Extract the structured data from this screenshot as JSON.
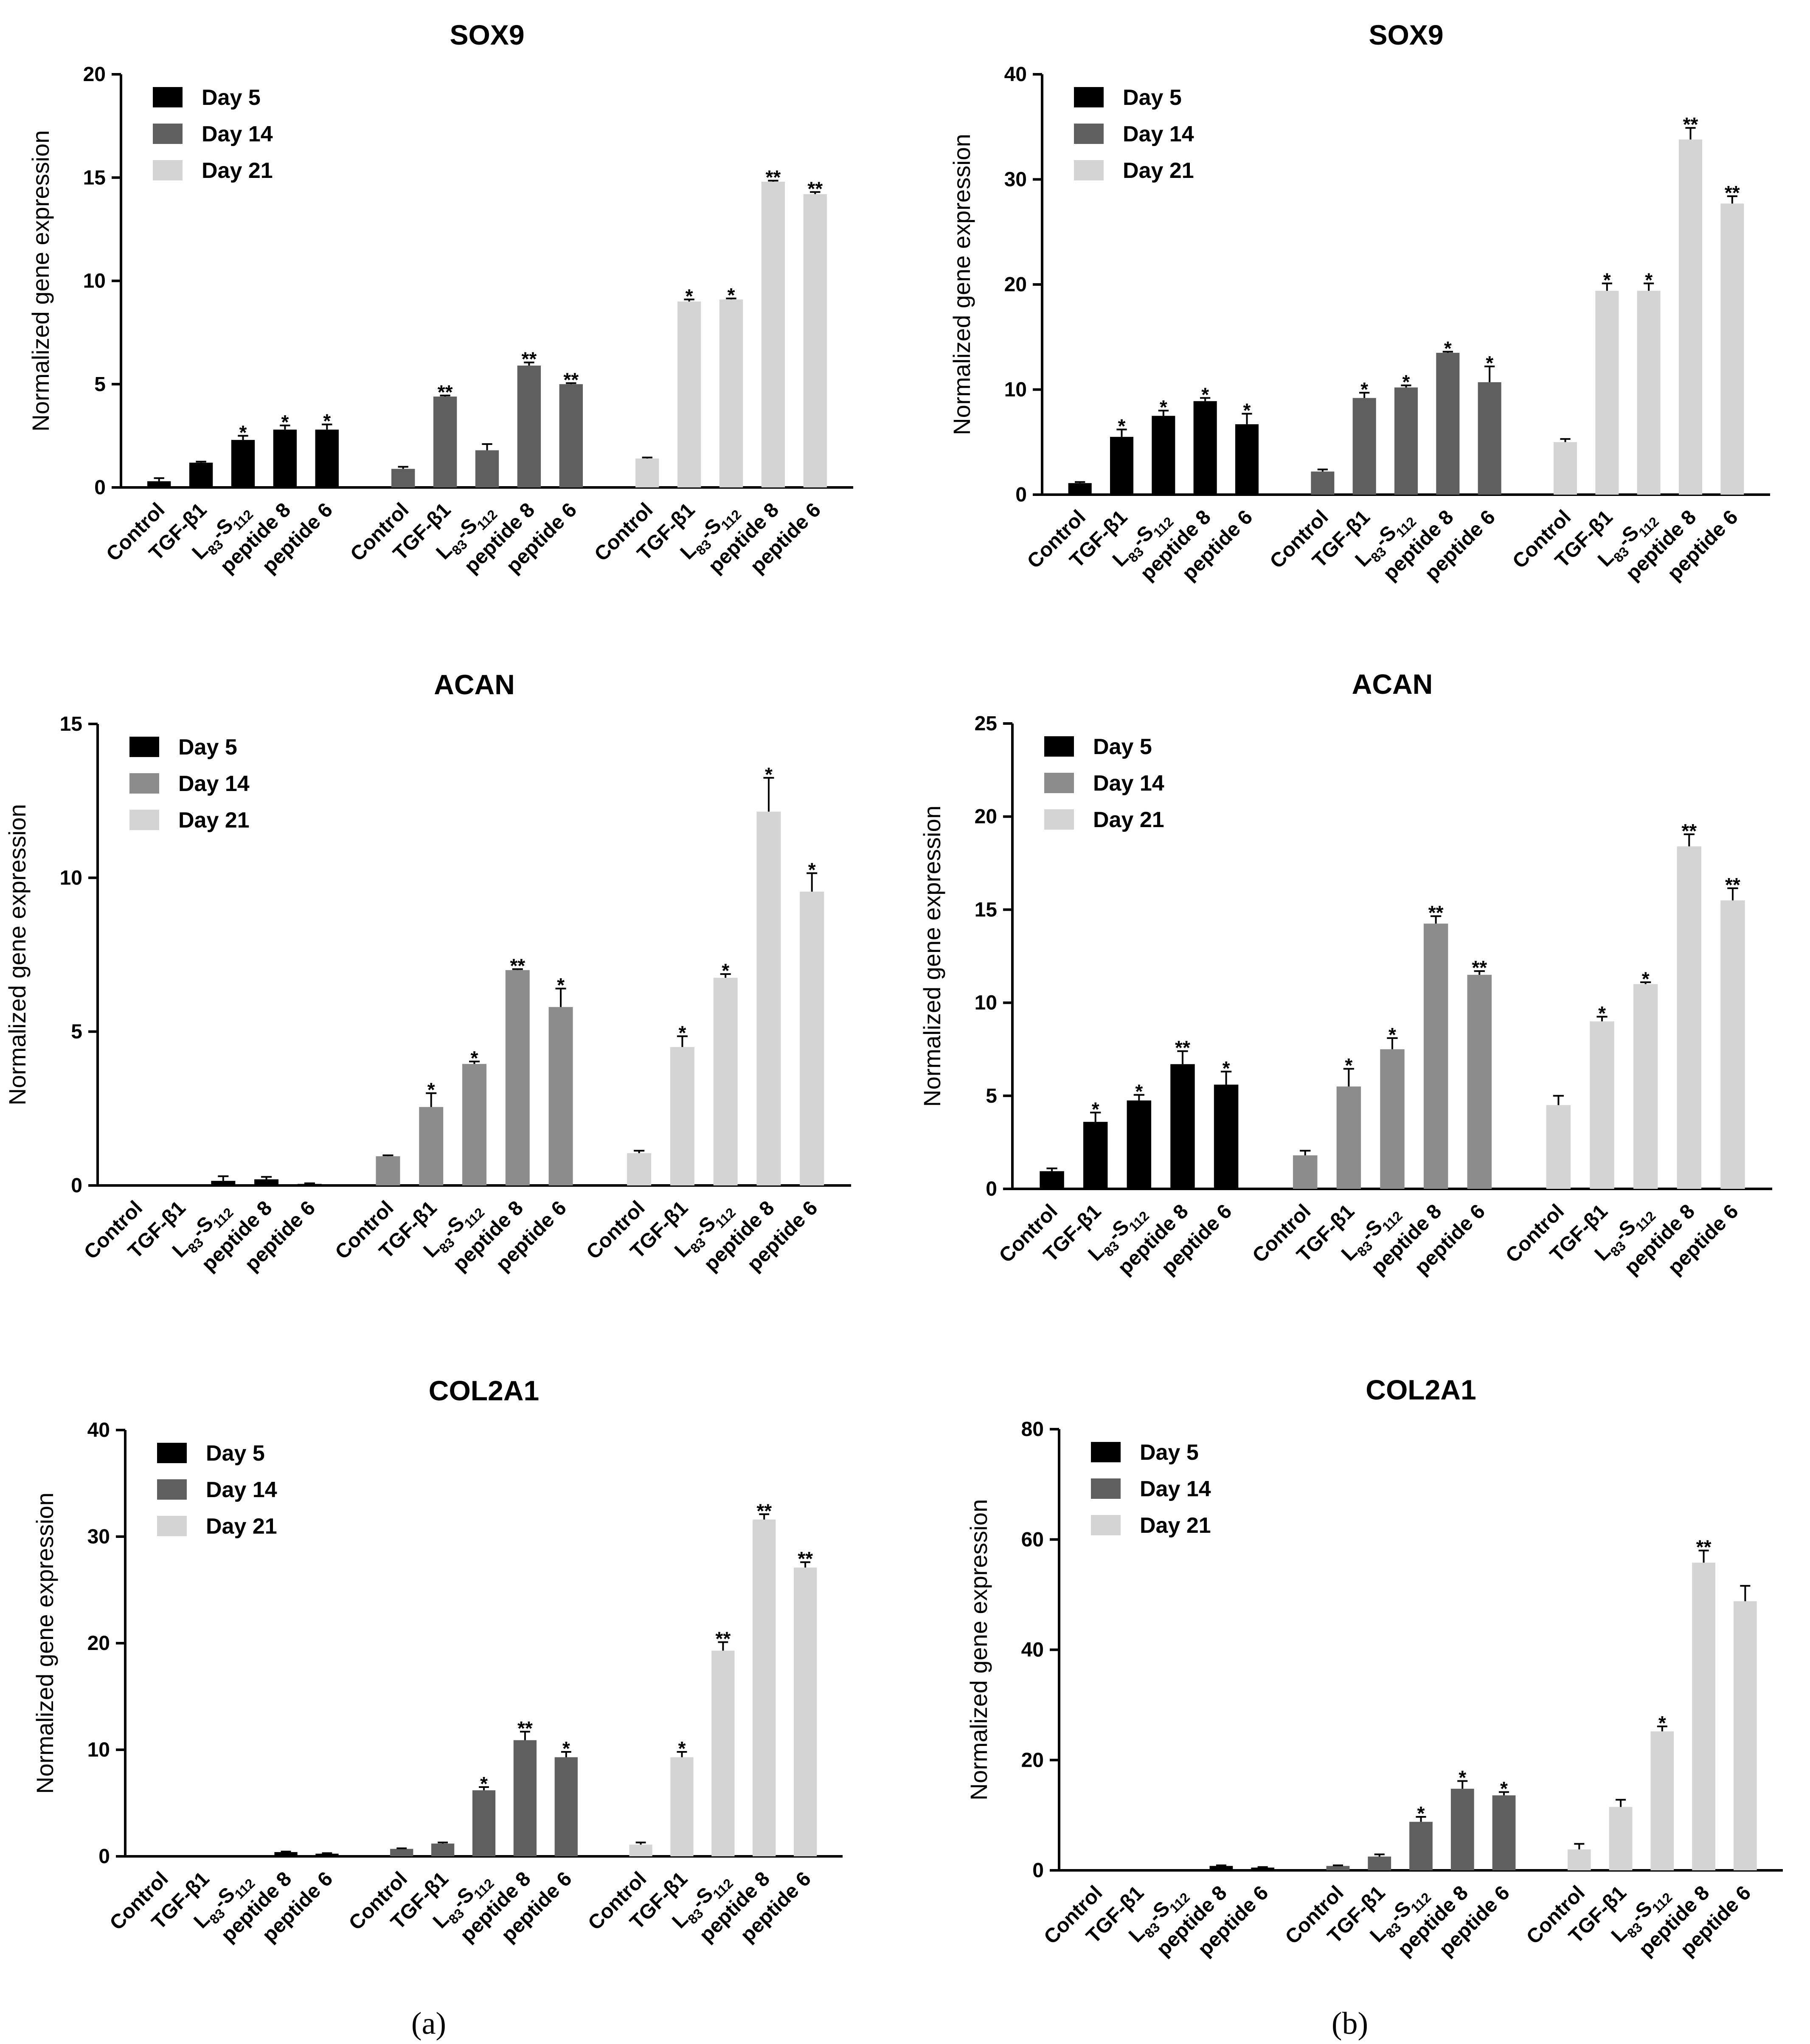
{
  "panel_labels": [
    "(a)",
    "(b)"
  ],
  "chart_data": [
    {
      "type": "bar",
      "panel": "a",
      "title": "SOX9",
      "ylabel": "Normalized gene expression",
      "ylim": [
        0,
        20
      ],
      "yticks": [
        0,
        5,
        10,
        15,
        20
      ],
      "categories": [
        "Control",
        "TGF-β1",
        "L83-S112",
        "peptide 8",
        "peptide 6"
      ],
      "legend": [
        "Day 5",
        "Day 14",
        "Day 21"
      ],
      "series": [
        {
          "name": "Day 5",
          "color": "#000000",
          "values": [
            0.3,
            1.2,
            2.3,
            2.8,
            2.8
          ],
          "errors": [
            0.15,
            0.05,
            0.2,
            0.2,
            0.25
          ],
          "sig": [
            "",
            "",
            "*",
            "*",
            "*"
          ]
        },
        {
          "name": "Day 14",
          "color": "#5f5f5f",
          "values": [
            0.9,
            4.4,
            1.8,
            5.9,
            5.0
          ],
          "errors": [
            0.1,
            0.05,
            0.3,
            0.15,
            0.05
          ],
          "sig": [
            "",
            "**",
            "",
            "**",
            "**"
          ]
        },
        {
          "name": "Day 21",
          "color": "#d4d4d4",
          "values": [
            1.4,
            9.0,
            9.1,
            14.8,
            14.2
          ],
          "errors": [
            0.05,
            0.1,
            0.05,
            0.05,
            0.1
          ],
          "sig": [
            "",
            "*",
            "*",
            "**",
            "**"
          ]
        }
      ]
    },
    {
      "type": "bar",
      "panel": "b",
      "title": "SOX9",
      "ylabel": "Normalized gene expression",
      "ylim": [
        0,
        40
      ],
      "yticks": [
        0,
        10,
        20,
        30,
        40
      ],
      "categories": [
        "Control",
        "TGF-β1",
        "L83-S112",
        "peptide 8",
        "peptide 6"
      ],
      "legend": [
        "Day 5",
        "Day 14",
        "Day 21"
      ],
      "series": [
        {
          "name": "Day 5",
          "color": "#000000",
          "values": [
            1.1,
            5.5,
            7.5,
            8.9,
            6.7
          ],
          "errors": [
            0.1,
            0.7,
            0.5,
            0.3,
            1.0
          ],
          "sig": [
            "",
            "*",
            "*",
            "*",
            "*"
          ]
        },
        {
          "name": "Day 14",
          "color": "#5f5f5f",
          "values": [
            2.2,
            9.2,
            10.2,
            13.5,
            10.7
          ],
          "errors": [
            0.2,
            0.5,
            0.2,
            0.1,
            1.5
          ],
          "sig": [
            "",
            "*",
            "*",
            "*",
            "*"
          ]
        },
        {
          "name": "Day 21",
          "color": "#d4d4d4",
          "values": [
            5.0,
            19.4,
            19.4,
            33.8,
            27.7
          ],
          "errors": [
            0.3,
            0.7,
            0.7,
            1.1,
            0.7
          ],
          "sig": [
            "",
            "*",
            "*",
            "**",
            "**"
          ]
        }
      ]
    },
    {
      "type": "bar",
      "panel": "a",
      "title": "ACAN",
      "ylabel": "Normalized gene expression",
      "ylim": [
        0,
        15
      ],
      "yticks": [
        0,
        5,
        10,
        15
      ],
      "categories": [
        "Control",
        "TGF-β1",
        "L83-S112",
        "peptide 8",
        "peptide 6"
      ],
      "legend": [
        "Day 5",
        "Day 14",
        "Day 21"
      ],
      "series": [
        {
          "name": "Day 5",
          "color": "#000000",
          "values": [
            0.0,
            0.0,
            0.15,
            0.2,
            0.05
          ],
          "errors": [
            0.0,
            0.0,
            0.15,
            0.08,
            0.02
          ],
          "sig": [
            "",
            "",
            "",
            "",
            ""
          ]
        },
        {
          "name": "Day 14",
          "color": "#8c8c8c",
          "values": [
            0.95,
            2.55,
            3.95,
            7.0,
            5.8
          ],
          "errors": [
            0.03,
            0.45,
            0.08,
            0.03,
            0.6
          ],
          "sig": [
            "",
            "*",
            "*",
            "**",
            "*"
          ]
        },
        {
          "name": "Day 21",
          "color": "#d4d4d4",
          "values": [
            1.05,
            4.5,
            6.75,
            12.15,
            9.55
          ],
          "errors": [
            0.08,
            0.35,
            0.12,
            1.1,
            0.6
          ],
          "sig": [
            "",
            "*",
            "*",
            "*",
            "*"
          ]
        }
      ]
    },
    {
      "type": "bar",
      "panel": "b",
      "title": "ACAN",
      "ylabel": "Normalized gene expression",
      "ylim": [
        0,
        25
      ],
      "yticks": [
        0,
        5,
        10,
        15,
        20,
        25
      ],
      "categories": [
        "Control",
        "TGF-β1",
        "L83-S112",
        "peptide 8",
        "peptide 6"
      ],
      "legend": [
        "Day 5",
        "Day 14",
        "Day 21"
      ],
      "series": [
        {
          "name": "Day 5",
          "color": "#000000",
          "values": [
            0.95,
            3.6,
            4.75,
            6.7,
            5.6
          ],
          "errors": [
            0.15,
            0.5,
            0.3,
            0.7,
            0.7
          ],
          "sig": [
            "",
            "*",
            "*",
            "**",
            "*"
          ]
        },
        {
          "name": "Day 14",
          "color": "#8c8c8c",
          "values": [
            1.8,
            5.5,
            7.5,
            14.25,
            11.5
          ],
          "errors": [
            0.25,
            0.95,
            0.6,
            0.4,
            0.2
          ],
          "sig": [
            "",
            "*",
            "*",
            "**",
            "**"
          ]
        },
        {
          "name": "Day 21",
          "color": "#d4d4d4",
          "values": [
            4.5,
            9.0,
            11.0,
            18.4,
            15.5
          ],
          "errors": [
            0.5,
            0.25,
            0.1,
            0.65,
            0.65
          ],
          "sig": [
            "",
            "*",
            "*",
            "**",
            "**"
          ]
        }
      ]
    },
    {
      "type": "bar",
      "panel": "a",
      "title": "COL2A1",
      "ylabel": "Normalized gene expression",
      "ylim": [
        0,
        40
      ],
      "yticks": [
        0,
        10,
        20,
        30,
        40
      ],
      "categories": [
        "Control",
        "TGF-β1",
        "L83-S112",
        "peptide 8",
        "peptide 6"
      ],
      "legend": [
        "Day 5",
        "Day 14",
        "Day 21"
      ],
      "series": [
        {
          "name": "Day 5",
          "color": "#000000",
          "values": [
            0.0,
            0.0,
            0.05,
            0.4,
            0.25
          ],
          "errors": [
            0.0,
            0.0,
            0.0,
            0.05,
            0.05
          ],
          "sig": [
            "",
            "",
            "",
            "",
            ""
          ]
        },
        {
          "name": "Day 14",
          "color": "#5f5f5f",
          "values": [
            0.7,
            1.2,
            6.2,
            10.9,
            9.3
          ],
          "errors": [
            0.05,
            0.1,
            0.3,
            0.8,
            0.5
          ],
          "sig": [
            "",
            "",
            "*",
            "**",
            "*"
          ]
        },
        {
          "name": "Day 21",
          "color": "#d4d4d4",
          "values": [
            1.1,
            9.3,
            19.3,
            31.6,
            27.1
          ],
          "errors": [
            0.2,
            0.5,
            0.8,
            0.5,
            0.5
          ],
          "sig": [
            "",
            "*",
            "**",
            "**",
            "**"
          ]
        }
      ]
    },
    {
      "type": "bar",
      "panel": "b",
      "title": "COL2A1",
      "ylabel": "Normalized gene expression",
      "ylim": [
        0,
        80
      ],
      "yticks": [
        0,
        20,
        40,
        60,
        80
      ],
      "categories": [
        "Control",
        "TGF-β1",
        "L83-S112",
        "peptide 8",
        "peptide 6"
      ],
      "legend": [
        "Day 5",
        "Day 14",
        "Day 21"
      ],
      "series": [
        {
          "name": "Day 5",
          "color": "#000000",
          "values": [
            0.0,
            0.0,
            0.0,
            0.8,
            0.5
          ],
          "errors": [
            0.0,
            0.0,
            0.0,
            0.1,
            0.1
          ],
          "sig": [
            "",
            "",
            "",
            "",
            ""
          ]
        },
        {
          "name": "Day 14",
          "color": "#5f5f5f",
          "values": [
            0.8,
            2.5,
            8.8,
            14.8,
            13.6
          ],
          "errors": [
            0.1,
            0.4,
            0.9,
            1.4,
            0.6
          ],
          "sig": [
            "",
            "",
            "*",
            "*",
            "*"
          ]
        },
        {
          "name": "Day 21",
          "color": "#d4d4d4",
          "values": [
            3.8,
            11.5,
            25.2,
            55.8,
            48.8
          ],
          "errors": [
            1.0,
            1.3,
            0.9,
            2.2,
            2.8
          ],
          "sig": [
            "",
            "",
            "*",
            "**",
            ""
          ]
        }
      ]
    }
  ]
}
